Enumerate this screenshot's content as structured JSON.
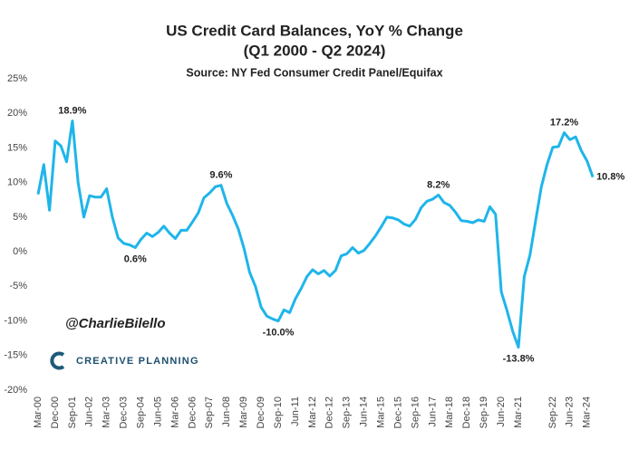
{
  "chart_data": {
    "type": "line",
    "title": [
      "US Credit Card Balances, YoY % Change",
      "(Q1 2000 - Q2 2024)"
    ],
    "subtitle": "Source: NY Fed Consumer Credit Panel/Equifax",
    "watermark": [
      "@CharlieBilello",
      "CREATIVE PLANNING"
    ],
    "categories": [
      "Mar-00",
      null,
      null,
      "Dec-00",
      null,
      null,
      "Sep-01",
      null,
      null,
      "Jun-02",
      null,
      null,
      "Mar-03",
      null,
      null,
      "Dec-03",
      null,
      null,
      "Sep-04",
      null,
      null,
      "Jun-05",
      null,
      null,
      "Mar-06",
      null,
      null,
      "Dec-06",
      null,
      null,
      "Sep-07",
      null,
      null,
      "Jun-08",
      null,
      null,
      "Mar-09",
      null,
      null,
      "Dec-09",
      null,
      null,
      "Sep-10",
      null,
      null,
      "Jun-11",
      null,
      null,
      "Mar-12",
      null,
      null,
      "Dec-12",
      null,
      null,
      "Sep-13",
      null,
      null,
      "Jun-14",
      null,
      null,
      "Mar-15",
      null,
      null,
      "Dec-15",
      null,
      null,
      "Sep-16",
      null,
      null,
      "Jun-17",
      null,
      null,
      "Mar-18",
      null,
      null,
      "Dec-18",
      null,
      null,
      "Sep-19",
      null,
      null,
      "Jun-20",
      null,
      null,
      "Mar-21",
      null,
      null,
      null,
      null,
      null,
      "Sep-22",
      null,
      null,
      "Jun-23",
      null,
      null,
      "Mar-24",
      null
    ],
    "series": [
      {
        "color": "#1fb5ea",
        "values": [
          8.3,
          12.6,
          6,
          16,
          15.3,
          13,
          18.9,
          10,
          5,
          8.1,
          7.9,
          7.9,
          9.1,
          5,
          2,
          1.2,
          1,
          0.6,
          1.8,
          2.7,
          2.2,
          2.8,
          3.7,
          2.7,
          1.9,
          3.1,
          3.1,
          4.3,
          5.6,
          7.8,
          8.5,
          9.4,
          9.6,
          7,
          5.3,
          3.3,
          0.5,
          -3,
          -5,
          -8,
          -9.3,
          -9.7,
          -10,
          -8.4,
          -8.8,
          -6.8,
          -5.3,
          -3.6,
          -2.6,
          -3.2,
          -2.7,
          -3.5,
          -2.7,
          -0.6,
          -0.3,
          0.6,
          -0.2,
          0.2,
          1.2,
          2.3,
          3.6,
          5,
          4.9,
          4.6,
          4,
          3.7,
          4.7,
          6.4,
          7.3,
          7.6,
          8.2,
          7.1,
          6.7,
          5.7,
          4.5,
          4.4,
          4.2,
          4.6,
          4.4,
          6.5,
          5.4,
          -5.8,
          -8.5,
          -11.5,
          -13.8,
          -3.6,
          -0.5,
          4.5,
          9.4,
          12.6,
          15.1,
          15.2,
          17.2,
          16.2,
          16.6,
          14.6,
          13.1,
          10.8
        ],
        "value_labels": [
          null,
          null,
          null,
          null,
          null,
          null,
          "18.9%",
          null,
          null,
          null,
          null,
          null,
          null,
          null,
          null,
          null,
          null,
          "0.6%",
          null,
          null,
          null,
          null,
          null,
          null,
          null,
          null,
          null,
          null,
          null,
          null,
          null,
          null,
          "9.6%",
          null,
          null,
          null,
          null,
          null,
          null,
          null,
          null,
          null,
          "-10.0%",
          null,
          null,
          null,
          null,
          null,
          null,
          null,
          null,
          null,
          null,
          null,
          null,
          null,
          null,
          null,
          null,
          null,
          null,
          null,
          null,
          null,
          null,
          null,
          null,
          null,
          null,
          null,
          "8.2%",
          null,
          null,
          null,
          null,
          null,
          null,
          null,
          null,
          null,
          null,
          null,
          null,
          null,
          "-13.8%",
          null,
          null,
          null,
          null,
          null,
          null,
          null,
          "17.2%",
          null,
          null,
          null,
          null,
          "10.8%"
        ]
      }
    ],
    "ylim": [
      -20,
      25
    ],
    "yticks": [
      {
        "value": -20,
        "label": "-20%"
      },
      {
        "value": -15,
        "label": "-15%"
      },
      {
        "value": -10,
        "label": "-10%"
      },
      {
        "value": -5,
        "label": "-5%"
      },
      {
        "value": 0,
        "label": "0%"
      },
      {
        "value": 5,
        "label": "5%"
      },
      {
        "value": 10,
        "label": "10%"
      },
      {
        "value": 15,
        "label": "15%"
      },
      {
        "value": 20,
        "label": "20%"
      },
      {
        "value": 25,
        "label": "25%"
      }
    ],
    "grid": false
  }
}
